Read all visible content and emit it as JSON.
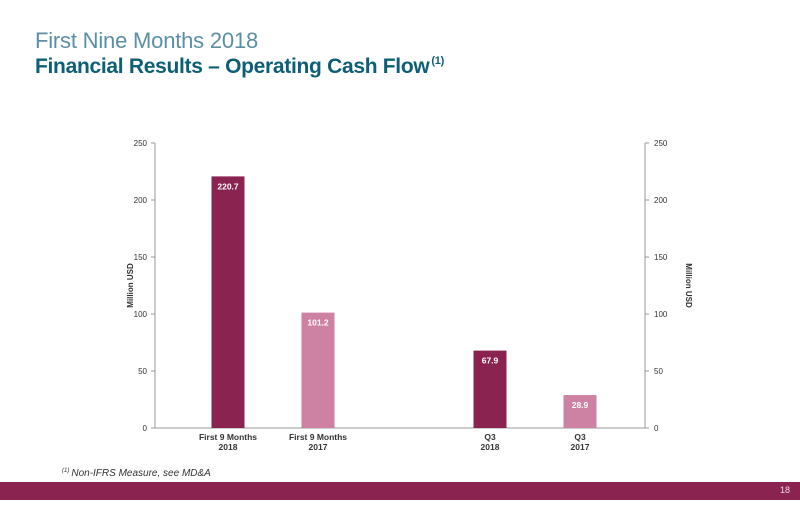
{
  "header": {
    "subtitle": "First Nine Months 2018",
    "title": "Financial Results – Operating Cash Flow",
    "title_note": "(1)"
  },
  "footnote": {
    "marker": "(1)",
    "text": "Non-IFRS Measure, see MD&A"
  },
  "footer": {
    "page_number": "18"
  },
  "colors": {
    "dark_bar": "#8a2350",
    "light_bar": "#ce82a3",
    "footer": "#8a2350",
    "title_light": "#5b8fa8",
    "title_dark": "#0c5f75"
  },
  "chart_data": {
    "type": "bar",
    "ylabel": "Million USD",
    "y2label": "Million USD",
    "ylim": [
      0,
      250
    ],
    "yticks": [
      0,
      50,
      100,
      150,
      200,
      250
    ],
    "grid": false,
    "categories": [
      [
        "First 9 Months",
        "2018"
      ],
      [
        "First 9 Months",
        "2017"
      ],
      [
        "Q3",
        "2018"
      ],
      [
        "Q3",
        "2017"
      ]
    ],
    "values": [
      220.7,
      101.2,
      67.9,
      28.9
    ],
    "value_labels": [
      "220.7",
      "101.2",
      "67.9",
      "28.9"
    ],
    "bar_colors": [
      "#8a2350",
      "#ce82a3",
      "#8a2350",
      "#ce82a3"
    ]
  }
}
